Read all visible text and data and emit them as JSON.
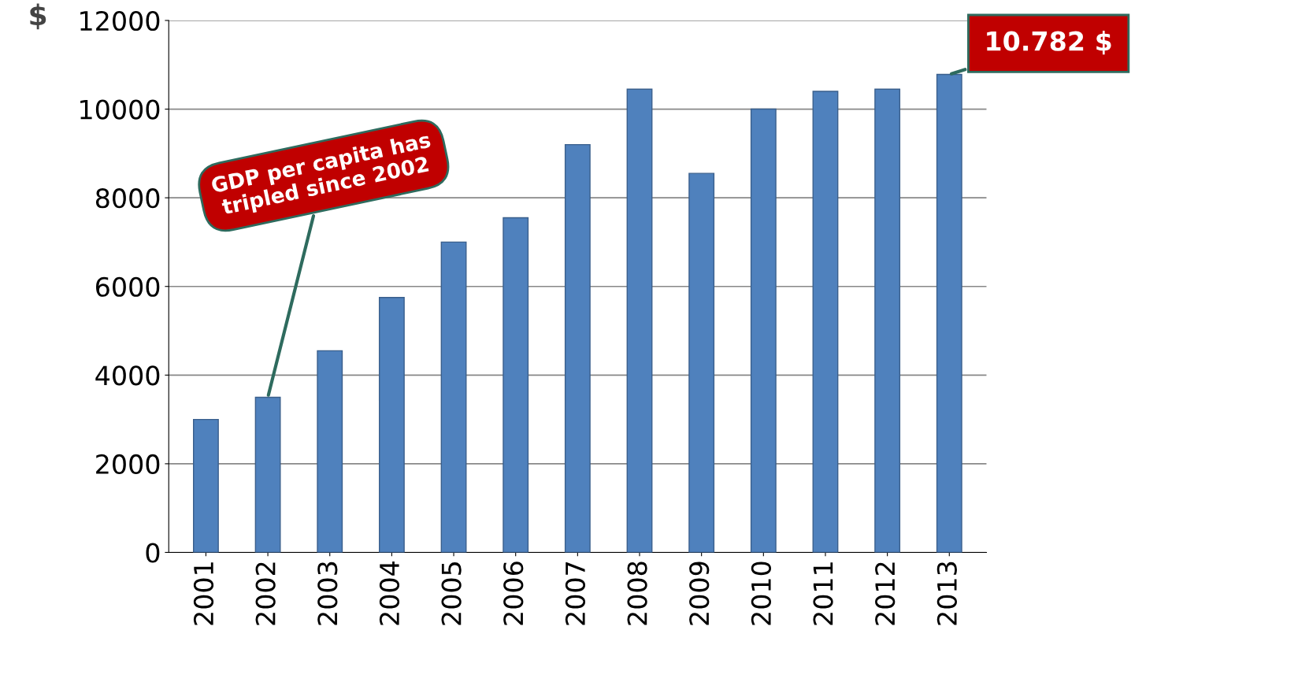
{
  "chart_data": {
    "type": "bar",
    "ylabel": "$",
    "categories": [
      "2001",
      "2002",
      "2003",
      "2004",
      "2005",
      "2006",
      "2007",
      "2008",
      "2009",
      "2010",
      "2011",
      "2012",
      "2013"
    ],
    "values": [
      3000,
      3500,
      4550,
      5750,
      7000,
      7550,
      9200,
      10450,
      8550,
      10000,
      10400,
      10450,
      10782
    ],
    "color": "#4f81bd",
    "ylim": [
      0,
      12000
    ],
    "yticks": [
      0,
      2000,
      4000,
      6000,
      8000,
      10000,
      12000
    ],
    "grid": "y",
    "annotations": [
      {
        "text": "GDP per capita has tripled since 2002",
        "x": "2002",
        "y": 3500
      },
      {
        "text": "10.782 $",
        "x": "2013",
        "y": 10782
      }
    ]
  }
}
